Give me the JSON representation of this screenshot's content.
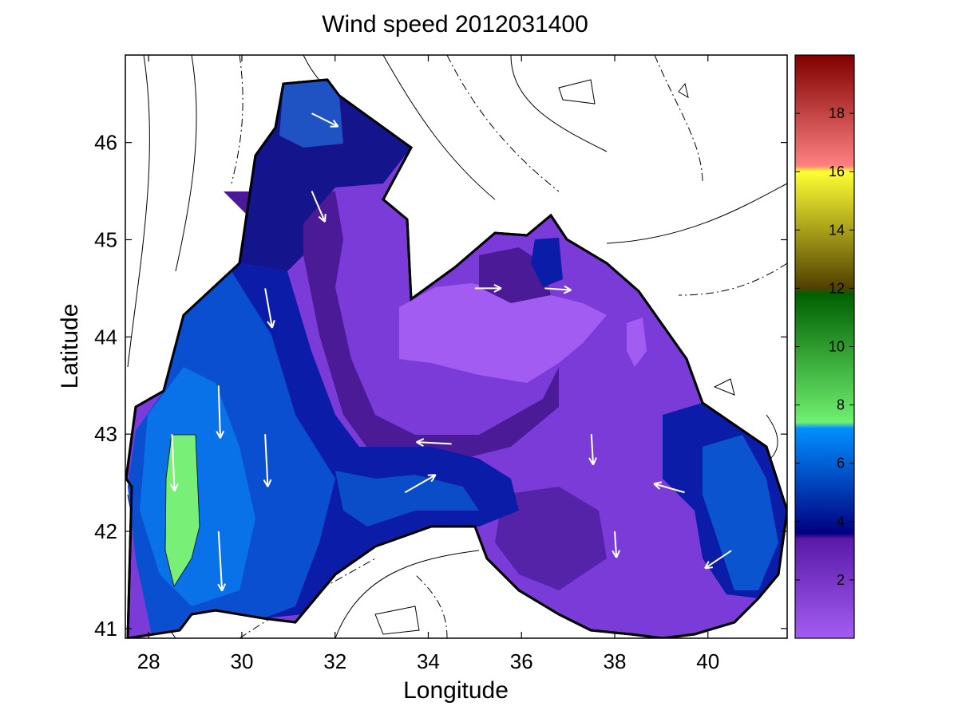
{
  "title": "Wind speed 2012031400",
  "chart_data": {
    "type": "heatmap",
    "title": "Wind speed 2012031400",
    "xlabel": "Longitude",
    "ylabel": "Latitude",
    "xlim": [
      27.5,
      41.7
    ],
    "ylim": [
      40.9,
      46.9
    ],
    "xticks": [
      28,
      30,
      32,
      34,
      36,
      38,
      40
    ],
    "xtick_labels": [
      "28",
      "30",
      "32",
      "34",
      "36",
      "38",
      "40"
    ],
    "yticks": [
      41,
      42,
      43,
      44,
      45,
      46
    ],
    "ytick_labels": [
      "41",
      "42",
      "43",
      "44",
      "45",
      "46"
    ],
    "colorbar": {
      "range": [
        0,
        20
      ],
      "ticks": [
        2,
        4,
        6,
        8,
        10,
        12,
        14,
        16,
        18
      ],
      "tick_labels": [
        "2",
        "4",
        "6",
        "8",
        "10",
        "12",
        "14",
        "16",
        "18"
      ]
    },
    "wind_speed_regions": [
      {
        "lon": [
          27.8,
          31.4
        ],
        "lat": [
          41.0,
          43.3
        ],
        "speed": 6.5
      },
      {
        "lon": [
          28.5,
          29.0
        ],
        "lat": [
          41.5,
          43.0
        ],
        "speed": 7.8
      },
      {
        "lon": [
          31.0,
          34.5
        ],
        "lat": [
          41.8,
          42.8
        ],
        "speed": 5.0
      },
      {
        "lon": [
          30.5,
          33.0
        ],
        "lat": [
          44.0,
          46.6
        ],
        "speed": 4.5
      },
      {
        "lon": [
          33.0,
          35.5
        ],
        "lat": [
          43.2,
          44.6
        ],
        "speed": 1.5
      },
      {
        "lon": [
          35.5,
          39.0
        ],
        "lat": [
          42.0,
          44.7
        ],
        "speed": 2.5
      },
      {
        "lon": [
          39.0,
          41.5
        ],
        "lat": [
          41.5,
          43.2
        ],
        "speed": 4.5
      },
      {
        "lon": [
          36.3,
          37.0
        ],
        "lat": [
          44.4,
          45.0
        ],
        "speed": 4.0
      }
    ],
    "wind_vectors": [
      {
        "lon": 28.5,
        "lat": 43.0,
        "u": 0.3,
        "v": -6.5
      },
      {
        "lon": 29.5,
        "lat": 43.5,
        "u": 0.2,
        "v": -6.0
      },
      {
        "lon": 29.5,
        "lat": 42.0,
        "u": 0.4,
        "v": -6.8
      },
      {
        "lon": 30.5,
        "lat": 43.0,
        "u": 0.3,
        "v": -6.0
      },
      {
        "lon": 30.5,
        "lat": 44.5,
        "u": 0.8,
        "v": -4.5
      },
      {
        "lon": 31.5,
        "lat": 45.5,
        "u": 1.5,
        "v": -3.5
      },
      {
        "lon": 31.5,
        "lat": 46.3,
        "u": 3.0,
        "v": -1.5
      },
      {
        "lon": 33.5,
        "lat": 42.4,
        "u": 3.5,
        "v": 2.0
      },
      {
        "lon": 34.5,
        "lat": 42.9,
        "u": -4.0,
        "v": 0.2
      },
      {
        "lon": 35.0,
        "lat": 44.5,
        "u": 3.0,
        "v": 0.0
      },
      {
        "lon": 36.5,
        "lat": 44.5,
        "u": 3.0,
        "v": -0.2
      },
      {
        "lon": 37.5,
        "lat": 43.0,
        "u": 0.2,
        "v": -3.5
      },
      {
        "lon": 38.0,
        "lat": 42.0,
        "u": 0.2,
        "v": -3.0
      },
      {
        "lon": 39.5,
        "lat": 42.4,
        "u": -3.5,
        "v": 1.0
      },
      {
        "lon": 40.5,
        "lat": 41.8,
        "u": -3.0,
        "v": -2.0
      }
    ]
  }
}
